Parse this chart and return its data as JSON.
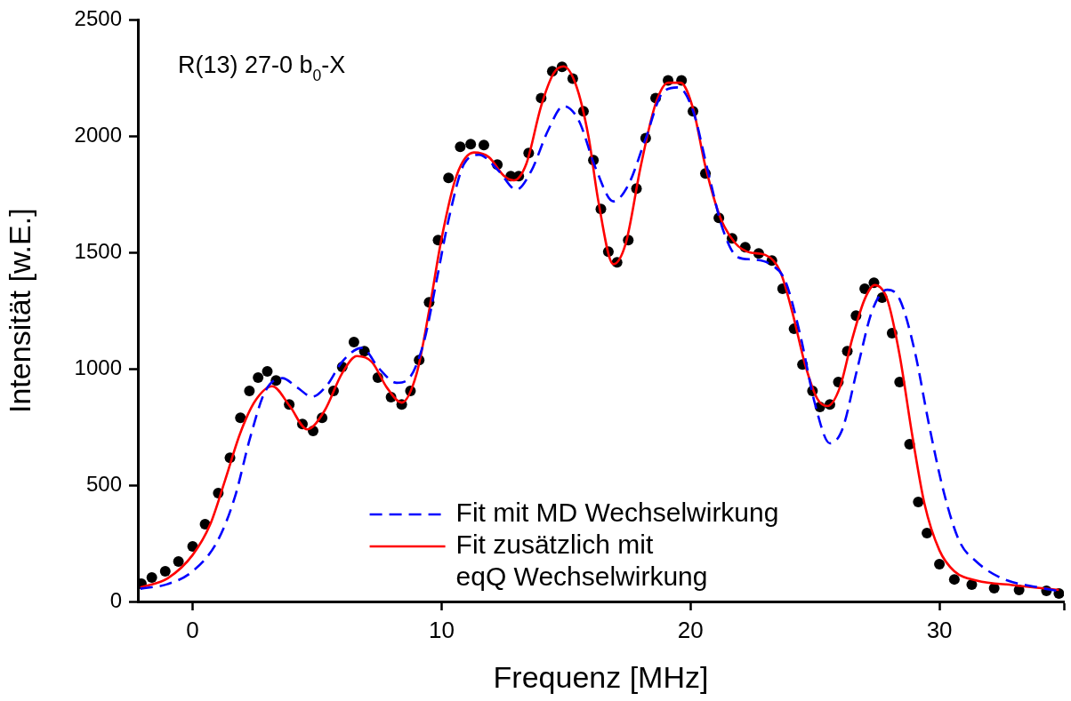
{
  "chart_data": {
    "type": "line",
    "xlabel": "Frequenz [MHz]",
    "ylabel": "Intensität [w.E.]",
    "xlim": [
      -2.2,
      35
    ],
    "xticks": [
      0,
      10,
      20,
      30,
      {
        "value": 35,
        "label": null
      }
    ],
    "ylim": [
      0,
      2500
    ],
    "yticks": [
      0,
      500,
      1000,
      1500,
      2000,
      2500
    ],
    "grid": false,
    "legend": "bottom",
    "annotations": [
      "R(13) 27-0 b$_{0}$-X"
    ],
    "series": [
      {
        "type": "scatter",
        "marker": "circle",
        "color": "#000000",
        "x": [
          -2.06,
          -1.64,
          -1.1,
          -0.57,
          0,
          0.5,
          1.03,
          1.5,
          1.92,
          2.28,
          2.63,
          3.0,
          3.35,
          3.88,
          4.41,
          4.84,
          5.2,
          5.66,
          6.01,
          6.48,
          6.9,
          7.44,
          7.97,
          8.4,
          8.75,
          9.1,
          9.5,
          9.86,
          10.28,
          10.75,
          11.17,
          11.7,
          12.24,
          12.78,
          13.1,
          13.5,
          14.0,
          14.45,
          14.84,
          15.27,
          15.7,
          16.1,
          16.4,
          16.7,
          17.05,
          17.5,
          17.83,
          18.2,
          18.6,
          19.1,
          19.64,
          20.1,
          20.6,
          21.14,
          21.67,
          22.2,
          22.74,
          23.27,
          23.7,
          24.16,
          24.5,
          24.9,
          25.2,
          25.6,
          25.94,
          26.3,
          26.65,
          27.0,
          27.37,
          27.7,
          28.1,
          28.4,
          28.8,
          29.15,
          29.5,
          30.0,
          30.6,
          31.3,
          32.2,
          33.2,
          34.3,
          34.8
        ],
        "values": [
          76,
          103,
          130,
          172,
          237,
          332,
          466,
          618,
          790,
          905,
          962,
          989,
          950,
          847,
          763,
          733,
          790,
          905,
          1008,
          1115,
          1076,
          962,
          878,
          847,
          905,
          1038,
          1286,
          1553,
          1821,
          1954,
          1966,
          1962,
          1878,
          1828,
          1828,
          1928,
          2164,
          2279,
          2298,
          2248,
          2107,
          1897,
          1687,
          1504,
          1458,
          1553,
          1775,
          1992,
          2164,
          2240,
          2240,
          2107,
          1840,
          1649,
          1561,
          1523,
          1496,
          1466,
          1344,
          1172,
          1019,
          905,
          836,
          847,
          943,
          1076,
          1229,
          1344,
          1370,
          1306,
          1153,
          943,
          676,
          428,
          294,
          160,
          95,
          73,
          57,
          50,
          46,
          34
        ]
      },
      {
        "type": "line",
        "marker": "none",
        "line_style": "dashed",
        "name": "Fit mit MD Wechselwirkung",
        "color": "#0000ff",
        "x": [
          -2.1,
          -1,
          0,
          1,
          1.7,
          2.3,
          2.9,
          3.6,
          4.2,
          4.8,
          5.4,
          6,
          6.8,
          7.5,
          8.2,
          8.7,
          9.3,
          9.8,
          10.3,
          10.9,
          11.5,
          12.3,
          13,
          13.6,
          14.3,
          14.9,
          15.5,
          16.2,
          16.9,
          17.5,
          18.2,
          18.9,
          19.5,
          20.1,
          20.7,
          21.3,
          21.9,
          22.5,
          23.2,
          23.8,
          24.4,
          25,
          25.6,
          26.1,
          26.7,
          27.3,
          27.9,
          28.4,
          29,
          29.6,
          30.2,
          30.8,
          31.5,
          32.5,
          34,
          34.8
        ],
        "values": [
          55,
          75,
          130,
          260,
          450,
          700,
          900,
          960,
          920,
          880,
          930,
          1030,
          1090,
          1000,
          940,
          960,
          1120,
          1380,
          1650,
          1880,
          1920,
          1850,
          1770,
          1850,
          2030,
          2130,
          2070,
          1860,
          1720,
          1790,
          1990,
          2190,
          2210,
          2110,
          1850,
          1600,
          1480,
          1470,
          1450,
          1380,
          1150,
          850,
          680,
          740,
          1000,
          1250,
          1340,
          1300,
          1080,
          750,
          460,
          260,
          170,
          100,
          60,
          45
        ]
      },
      {
        "type": "line",
        "marker": "none",
        "line_style": "solid",
        "name": "Fit zusätzlich mit\neqQ Wechselwirkung",
        "color": "#ff0000",
        "x": [
          -2.1,
          -1,
          0,
          0.7,
          1.3,
          1.9,
          2.5,
          3.2,
          3.9,
          4.6,
          5.3,
          6,
          6.6,
          7.2,
          7.8,
          8.4,
          9,
          9.5,
          10,
          10.6,
          11.3,
          11.9,
          12.5,
          12.9,
          13.4,
          14,
          14.5,
          14.9,
          15.4,
          15.9,
          16.3,
          16.9,
          17.4,
          18,
          18.6,
          19.1,
          19.6,
          20.1,
          20.6,
          21.2,
          21.8,
          22.4,
          23,
          23.6,
          24.1,
          24.6,
          25.1,
          25.5,
          26,
          26.5,
          27,
          27.4,
          27.9,
          28.4,
          28.9,
          29.4,
          30,
          30.6,
          31.5,
          33,
          34.8
        ],
        "values": [
          60,
          100,
          200,
          330,
          520,
          720,
          860,
          925,
          840,
          740,
          820,
          980,
          1055,
          1030,
          920,
          855,
          980,
          1250,
          1560,
          1830,
          1930,
          1910,
          1830,
          1810,
          1880,
          2130,
          2270,
          2300,
          2220,
          2000,
          1720,
          1450,
          1540,
          1870,
          2140,
          2230,
          2230,
          2120,
          1870,
          1650,
          1540,
          1500,
          1490,
          1420,
          1240,
          1020,
          870,
          840,
          920,
          1130,
          1300,
          1360,
          1300,
          1060,
          720,
          420,
          220,
          130,
          90,
          70,
          50
        ]
      }
    ]
  }
}
